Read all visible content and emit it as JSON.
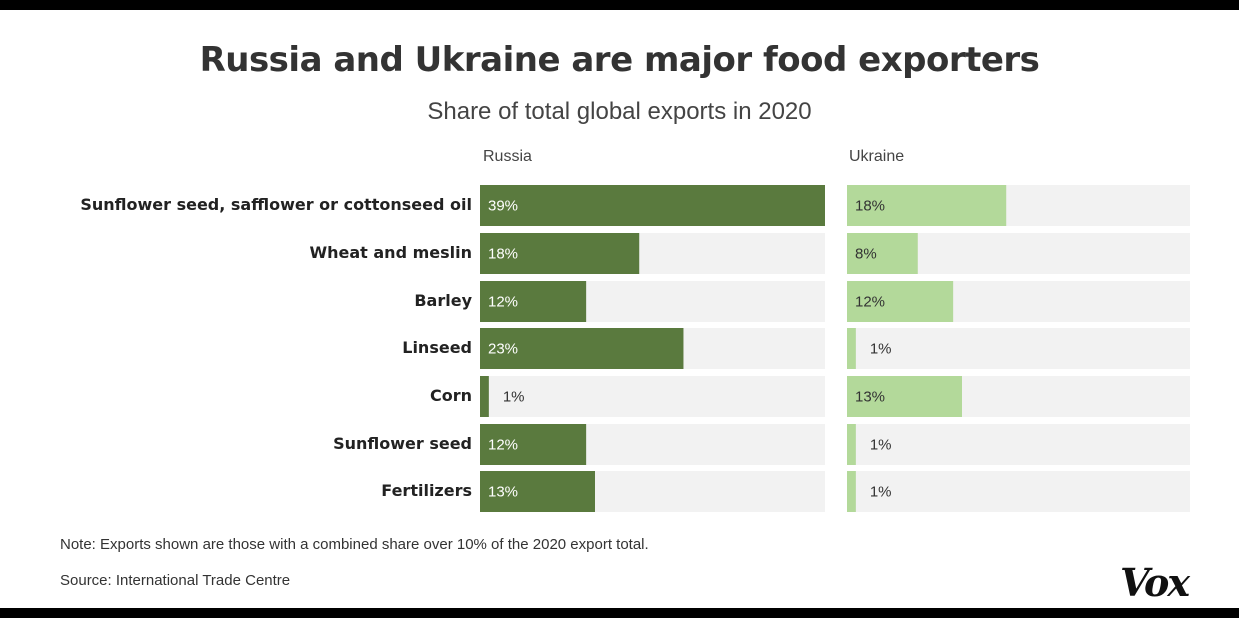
{
  "chart_data": {
    "type": "bar",
    "title": "Russia and Ukraine are major food exporters",
    "subtitle": "Share of total global exports in 2020",
    "categories": [
      "Sunflower seed, safflower or cottonseed oil",
      "Wheat and meslin",
      "Barley",
      "Linseed",
      "Corn",
      "Sunflower seed",
      "Fertilizers"
    ],
    "series": [
      {
        "name": "Russia",
        "values": [
          39,
          18,
          12,
          23,
          1,
          12,
          13
        ],
        "labels": [
          "39%",
          "18%",
          "12%",
          "23%",
          "1%",
          "12%",
          "13%"
        ],
        "color": "#5a7a3e"
      },
      {
        "name": "Ukraine",
        "values": [
          18,
          8,
          12,
          1,
          13,
          1,
          1
        ],
        "labels": [
          "18%",
          "8%",
          "12%",
          "1%",
          "13%",
          "1%",
          "1%"
        ],
        "color": "#b3d99a"
      }
    ],
    "xlim": [
      0,
      39
    ],
    "orientation": "horizontal",
    "track_color": "#f2f2f2"
  },
  "footer": {
    "note": "Note: Exports shown are those with a combined share over 10% of the 2020 export total.",
    "source": "Source: International Trade Centre",
    "logo": "Vox"
  }
}
